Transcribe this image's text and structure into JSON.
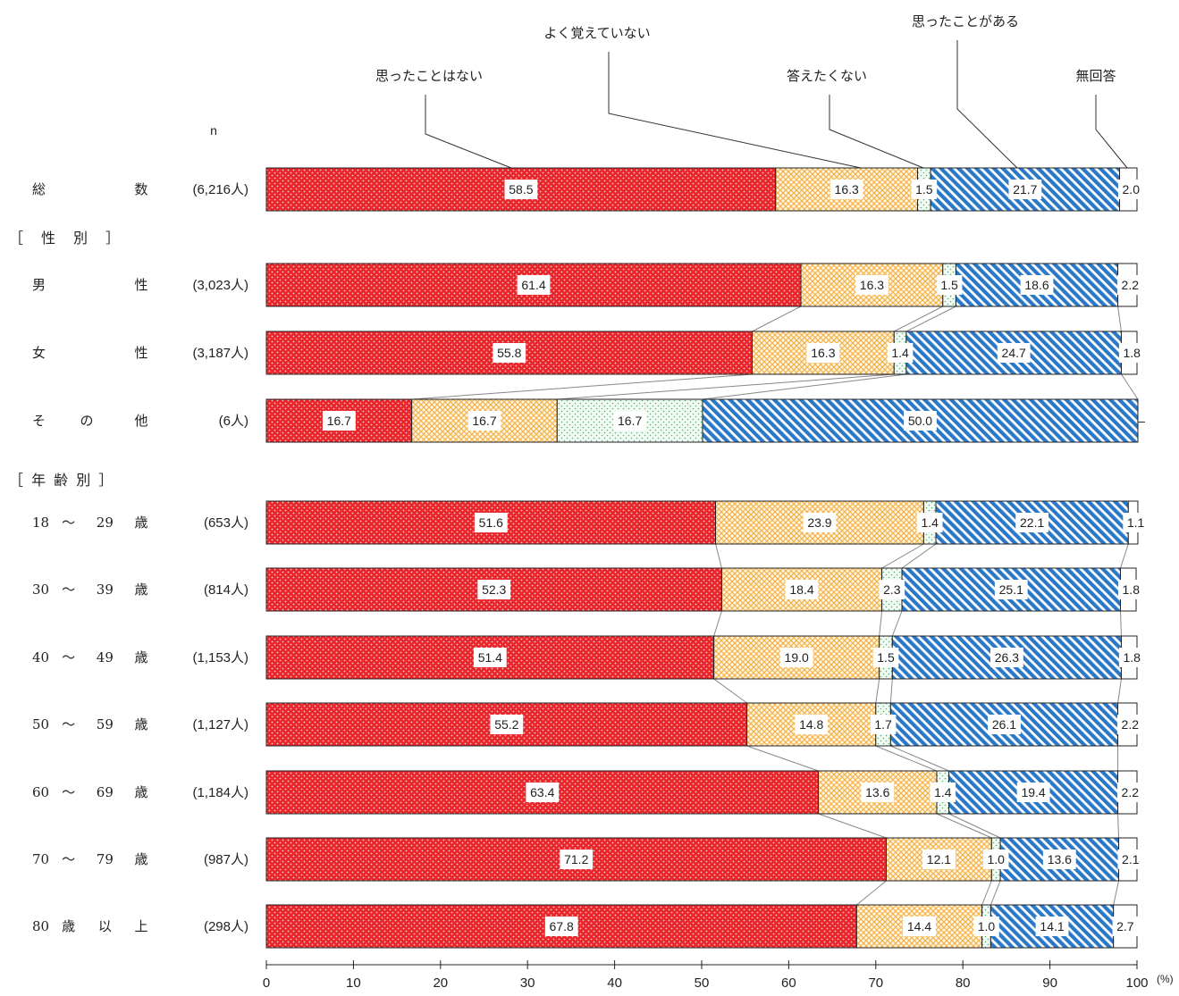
{
  "chart_data": {
    "type": "bar",
    "stacked": true,
    "orientation": "horizontal",
    "n_header": "n",
    "unit_label": "(%)",
    "x_ticks": [
      "0",
      "10",
      "20",
      "30",
      "40",
      "50",
      "60",
      "70",
      "80",
      "90",
      "100"
    ],
    "xlim": [
      0,
      100
    ],
    "series": [
      {
        "name": "思ったことはない",
        "color": "#e8262b"
      },
      {
        "name": "よく覚えていない",
        "color": "#f7b955"
      },
      {
        "name": "答えたくない",
        "color": "#6cc08a"
      },
      {
        "name": "思ったことがある",
        "color": "#2a78c8"
      },
      {
        "name": "無回答",
        "color": "#ffffff"
      }
    ],
    "legend_labels": [
      "思ったことはない",
      "よく覚えていない",
      "答えたくない",
      "思ったことがある",
      "無回答"
    ],
    "sections": [
      {
        "label": "［　性　別　］",
        "after_row": 0
      },
      {
        "label": "［ 年 齢 別 ］",
        "after_row": 3
      }
    ],
    "rows": [
      {
        "label": [
          "総",
          "数"
        ],
        "n": "(6,216人)",
        "values": [
          58.5,
          16.3,
          1.5,
          21.7,
          2.0
        ],
        "labels": [
          "58.5",
          "16.3",
          "1.5",
          "21.7",
          "2.0"
        ]
      },
      {
        "label": [
          "男",
          "性"
        ],
        "n": "(3,023人)",
        "values": [
          61.4,
          16.3,
          1.5,
          18.6,
          2.2
        ],
        "labels": [
          "61.4",
          "16.3",
          "1.5",
          "18.6",
          "2.2"
        ]
      },
      {
        "label": [
          "女",
          "性"
        ],
        "n": "(3,187人)",
        "values": [
          55.8,
          16.3,
          1.4,
          24.7,
          1.8
        ],
        "labels": [
          "55.8",
          "16.3",
          "1.4",
          "24.7",
          "1.8"
        ]
      },
      {
        "label": [
          "そ",
          "の",
          "他"
        ],
        "n": "(6人)",
        "values": [
          16.7,
          16.7,
          16.7,
          50.0,
          0
        ],
        "labels": [
          "16.7",
          "16.7",
          "16.7",
          "50.0",
          "–"
        ]
      },
      {
        "label": [
          "18",
          "～",
          "29",
          "歳"
        ],
        "n": "(653人)",
        "values": [
          51.6,
          23.9,
          1.4,
          22.1,
          1.1
        ],
        "labels": [
          "51.6",
          "23.9",
          "1.4",
          "22.1",
          "1.1"
        ]
      },
      {
        "label": [
          "30",
          "～",
          "39",
          "歳"
        ],
        "n": "(814人)",
        "values": [
          52.3,
          18.4,
          2.3,
          25.1,
          1.8
        ],
        "labels": [
          "52.3",
          "18.4",
          "2.3",
          "25.1",
          "1.8"
        ]
      },
      {
        "label": [
          "40",
          "～",
          "49",
          "歳"
        ],
        "n": "(1,153人)",
        "values": [
          51.4,
          19.0,
          1.5,
          26.3,
          1.8
        ],
        "labels": [
          "51.4",
          "19.0",
          "1.5",
          "26.3",
          "1.8"
        ]
      },
      {
        "label": [
          "50",
          "～",
          "59",
          "歳"
        ],
        "n": "(1,127人)",
        "values": [
          55.2,
          14.8,
          1.7,
          26.1,
          2.2
        ],
        "labels": [
          "55.2",
          "14.8",
          "1.7",
          "26.1",
          "2.2"
        ]
      },
      {
        "label": [
          "60",
          "～",
          "69",
          "歳"
        ],
        "n": "(1,184人)",
        "values": [
          63.4,
          13.6,
          1.4,
          19.4,
          2.2
        ],
        "labels": [
          "63.4",
          "13.6",
          "1.4",
          "19.4",
          "2.2"
        ]
      },
      {
        "label": [
          "70",
          "～",
          "79",
          "歳"
        ],
        "n": "(987人)",
        "values": [
          71.2,
          12.1,
          1.0,
          13.6,
          2.1
        ],
        "labels": [
          "71.2",
          "12.1",
          "1.0",
          "13.6",
          "2.1"
        ]
      },
      {
        "label": [
          "80",
          "歳",
          "以",
          "上"
        ],
        "n": "(298人)",
        "values": [
          67.8,
          14.4,
          1.0,
          14.1,
          2.7
        ],
        "labels": [
          "67.8",
          "14.4",
          "1.0",
          "14.1",
          "2.7"
        ]
      }
    ]
  }
}
